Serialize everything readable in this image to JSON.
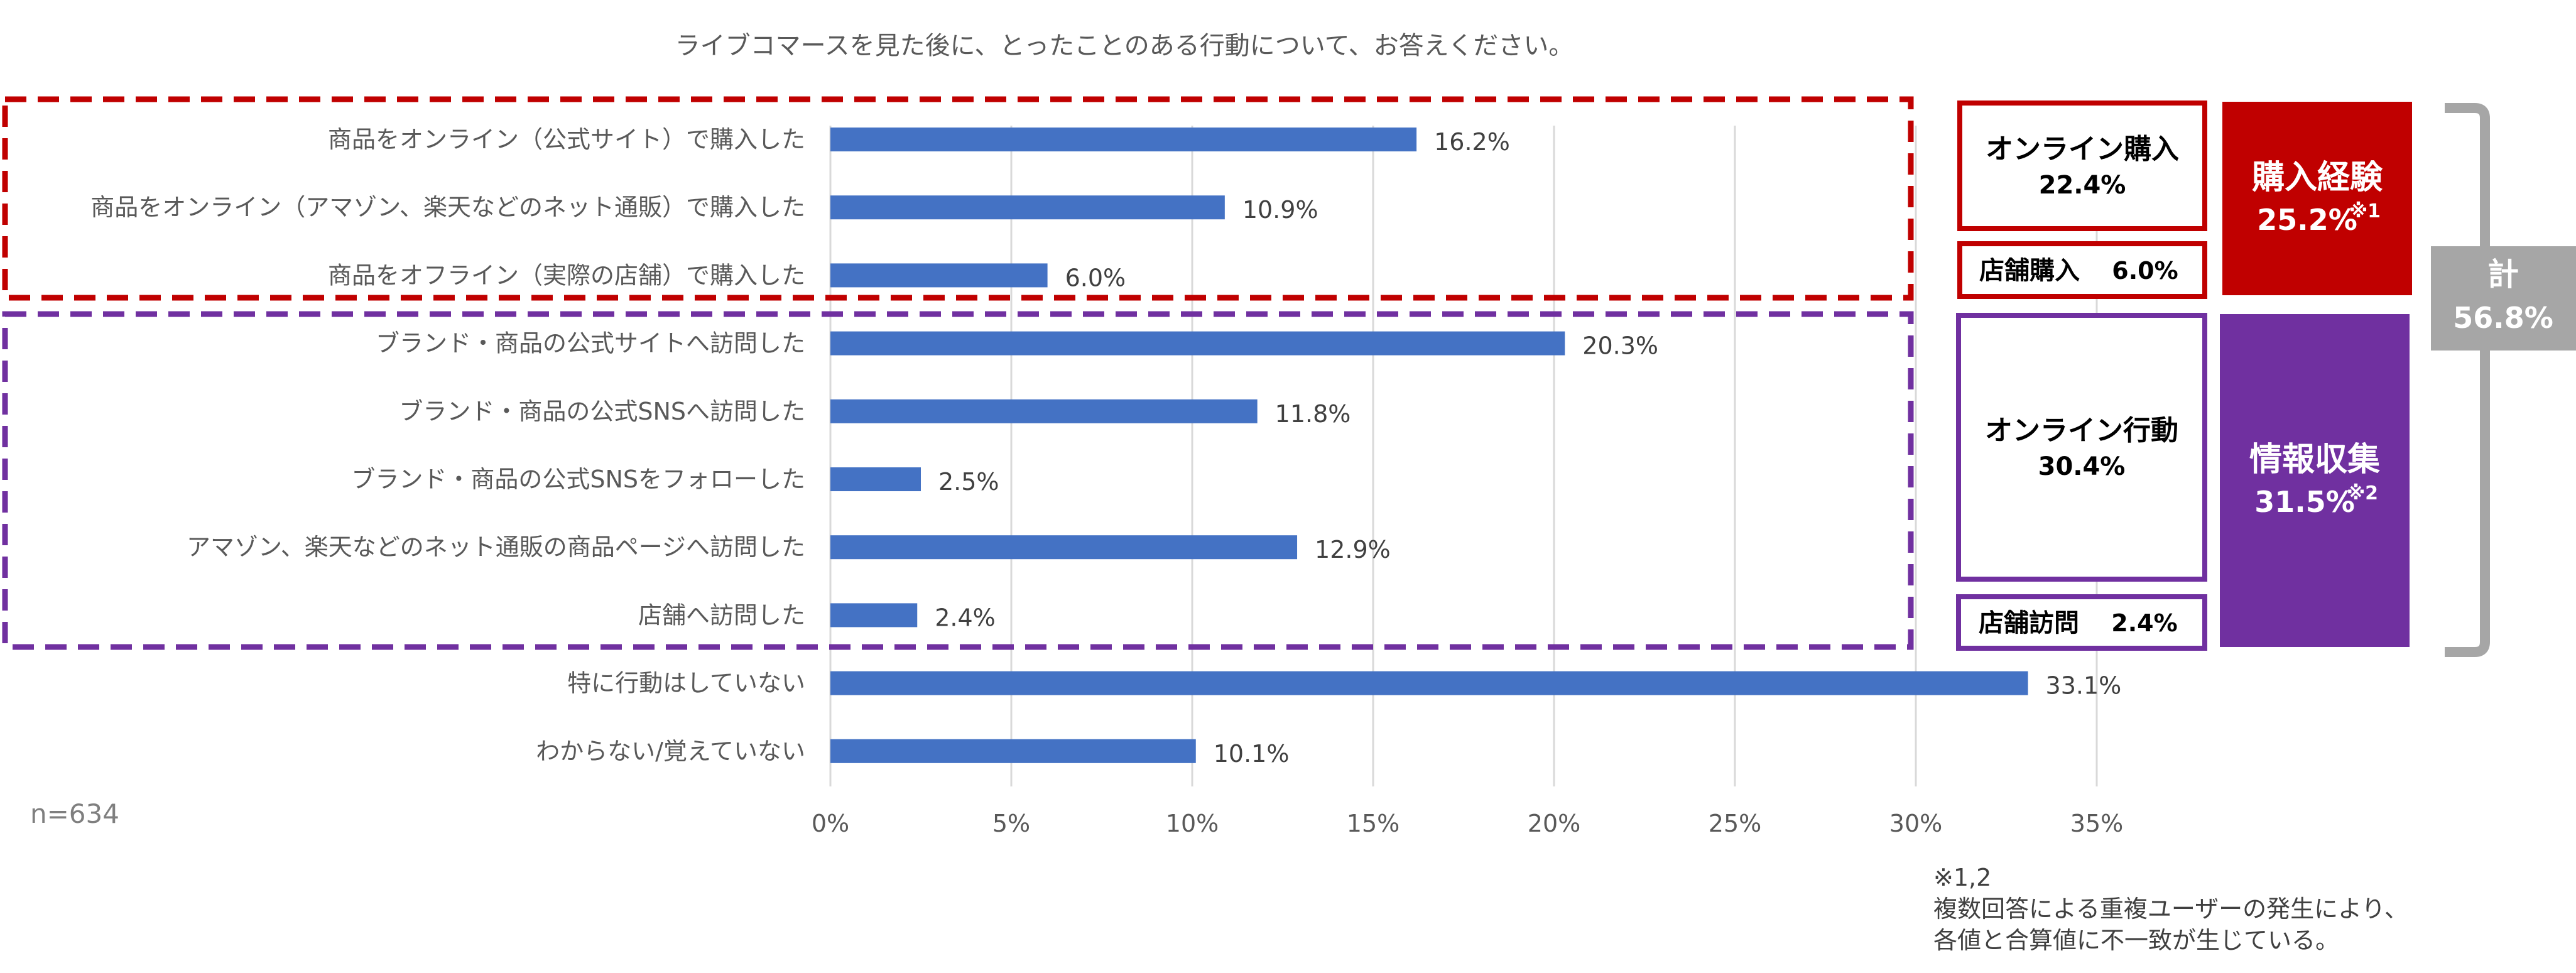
{
  "chart_data": {
    "type": "bar",
    "orientation": "horizontal",
    "title": "ライブコマースを見た後に、とったことのある行動について、お答えください。",
    "sample_label": "n=634",
    "categories": [
      "商品をオンライン（公式サイト）で購入した",
      "商品をオンライン（アマゾン、楽天などのネット通販）で購入した",
      "商品をオフライン（実際の店舗）で購入した",
      "ブランド・商品の公式サイトへ訪問した",
      "ブランド・商品の公式SNSへ訪問した",
      "ブランド・商品の公式SNSをフォローした",
      "アマゾン、楽天などのネット通販の商品ページへ訪問した",
      "店舗へ訪問した",
      "特に行動はしていない",
      "わからない/覚えていない"
    ],
    "values": [
      16.2,
      10.9,
      6.0,
      20.3,
      11.8,
      2.5,
      12.9,
      2.4,
      33.1,
      10.1
    ],
    "value_labels": [
      "16.2%",
      "10.9%",
      "6.0%",
      "20.3%",
      "11.8%",
      "2.5%",
      "12.9%",
      "2.4%",
      "33.1%",
      "10.1%"
    ],
    "xlim": [
      0,
      35
    ],
    "x_ticks": [
      "0%",
      "5%",
      "10%",
      "15%",
      "20%",
      "25%",
      "30%",
      "35%"
    ],
    "grid": true,
    "bar_color": "#4472C4",
    "groups": [
      {
        "name": "purchase",
        "color": "#C00000",
        "rows": [
          0,
          1,
          2
        ],
        "sub_boxes": [
          {
            "label": "オンライン購入",
            "value": "22.4%"
          },
          {
            "label": "店舗購入",
            "value": "6.0%"
          }
        ],
        "summary": {
          "label": "購入経験",
          "value": "25.2%",
          "note": "※1"
        }
      },
      {
        "name": "info",
        "color": "#7030A0",
        "rows": [
          3,
          4,
          5,
          6,
          7
        ],
        "sub_boxes": [
          {
            "label": "オンライン行動",
            "value": "30.4%"
          },
          {
            "label": "店舗訪問",
            "value": "2.4%"
          }
        ],
        "summary": {
          "label": "情報収集",
          "value": "31.5%",
          "note": "※2"
        }
      }
    ],
    "total": {
      "label": "計",
      "value": "56.8%",
      "color": "#A6A6A6"
    },
    "footnote": [
      "※1,2",
      "複数回答による重複ユーザーの発生により、",
      "各値と合算値に不一致が生じている。"
    ]
  }
}
